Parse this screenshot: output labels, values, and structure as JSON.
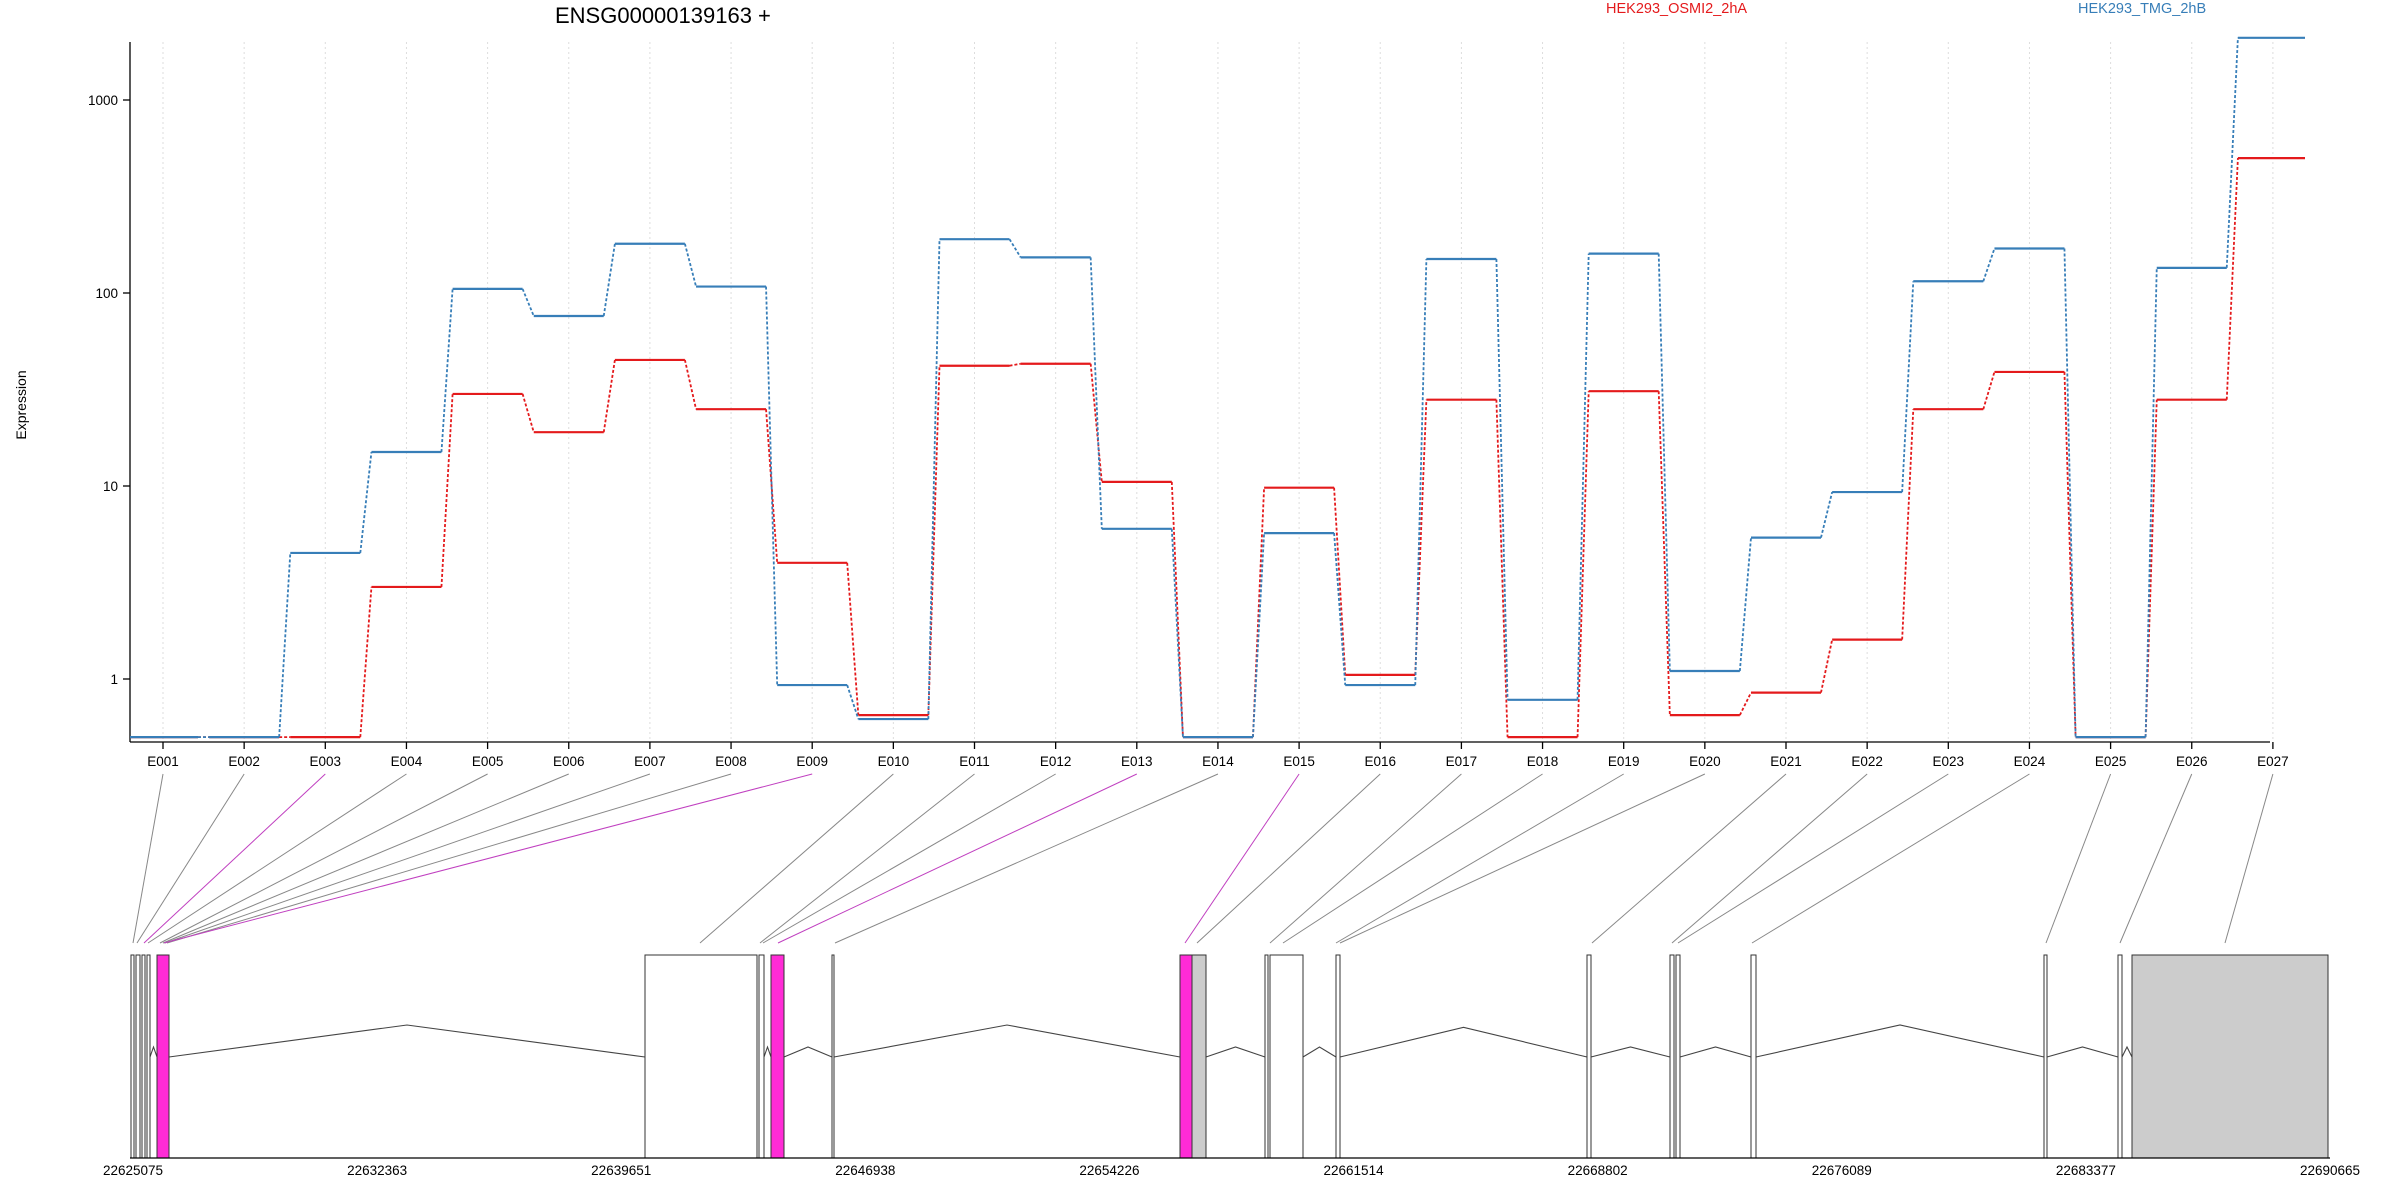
{
  "chart_data": {
    "type": "line",
    "title": "ENSG00000139163 +",
    "ylabel": "Expression",
    "xlabel": "",
    "y_scale": "log",
    "ylim": [
      0.5,
      3000
    ],
    "y_ticks": [
      {
        "value": 1,
        "label": "1"
      },
      {
        "value": 10,
        "label": "10"
      },
      {
        "value": 100,
        "label": "100"
      },
      {
        "value": 1000,
        "label": "1000"
      }
    ],
    "grid": "vertical dotted lines at each exon",
    "legend_position": "top",
    "categories": [
      "E001",
      "E002",
      "E003",
      "E004",
      "E005",
      "E006",
      "E007",
      "E008",
      "E009",
      "E010",
      "E011",
      "E012",
      "E013",
      "E014",
      "E015",
      "E016",
      "E017",
      "E018",
      "E019",
      "E020",
      "E021",
      "E022",
      "E023",
      "E024",
      "E025",
      "E026",
      "E027"
    ],
    "series": [
      {
        "name": "HEK293_OSMI2_2hA",
        "color": "#e41a1c",
        "values": [
          0.5,
          0.5,
          0.5,
          3.0,
          30,
          19,
          45,
          25,
          4.0,
          0.65,
          42,
          43,
          10.5,
          0.5,
          9.8,
          1.05,
          28,
          0.5,
          31,
          0.65,
          0.85,
          1.6,
          25,
          39,
          0.5,
          28,
          500
        ]
      },
      {
        "name": "HEK293_TMG_2hB",
        "color": "#377eb8",
        "values": [
          0.5,
          0.5,
          4.5,
          15,
          105,
          76,
          180,
          108,
          0.93,
          0.62,
          190,
          153,
          6,
          0.5,
          5.7,
          0.93,
          150,
          0.78,
          160,
          1.1,
          5.4,
          9.3,
          115,
          170,
          0.5,
          135,
          2100
        ]
      }
    ],
    "gene_model": {
      "coordinate_labels": [
        "22625075",
        "22632363",
        "22639651",
        "22646938",
        "22654226",
        "22661514",
        "22668802",
        "22676089",
        "22683377",
        "22690665"
      ],
      "exon_fill": "#ffffff",
      "highlight_color": "#ff2bd6",
      "utr_color": "#cccccc",
      "highlighted_exons": [
        "E003",
        "E009",
        "E013",
        "E015"
      ]
    }
  }
}
